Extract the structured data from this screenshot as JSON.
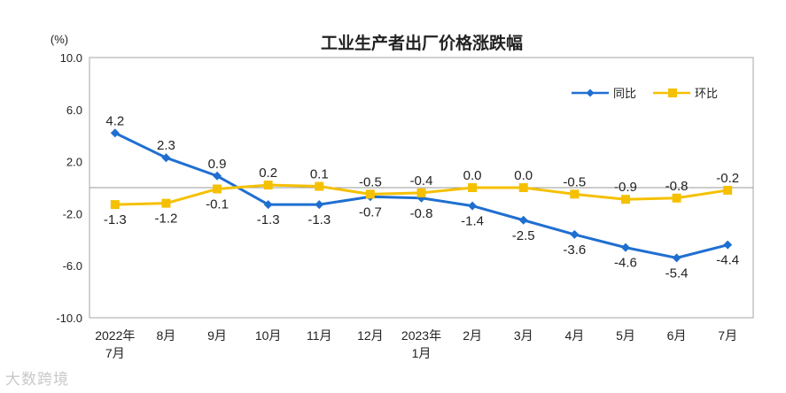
{
  "chart_data": {
    "type": "line",
    "title": "工业生产者出厂价格涨跌幅",
    "yunit": "(%)",
    "ylim": [
      -10.0,
      10.0
    ],
    "yticks": [
      "10.0",
      "6.0",
      "2.0",
      "-2.0",
      "-6.0",
      "-10.0"
    ],
    "ytick_values": [
      10,
      6,
      2,
      -2,
      -6,
      -10
    ],
    "categories": [
      [
        "2022年",
        "7月"
      ],
      [
        "8月"
      ],
      [
        "9月"
      ],
      [
        "10月"
      ],
      [
        "11月"
      ],
      [
        "12月"
      ],
      [
        "2023年",
        "1月"
      ],
      [
        "2月"
      ],
      [
        "3月"
      ],
      [
        "4月"
      ],
      [
        "5月"
      ],
      [
        "6月"
      ],
      [
        "7月"
      ]
    ],
    "series": [
      {
        "name": "同比",
        "color": "#1f6fd1",
        "marker": "diamond",
        "values": [
          4.2,
          2.3,
          0.9,
          -1.3,
          -1.3,
          -0.7,
          -0.8,
          -1.4,
          -2.5,
          -3.6,
          -4.6,
          -5.4,
          -4.4
        ],
        "labels": [
          "4.2",
          "2.3",
          "0.9",
          "-1.3",
          "-1.3",
          "-0.7",
          "-0.8",
          "-1.4",
          "-2.5",
          "-3.6",
          "-4.6",
          "-5.4",
          "-4.4"
        ]
      },
      {
        "name": "环比",
        "color": "#f5c000",
        "marker": "square",
        "values": [
          -1.3,
          -1.2,
          -0.1,
          0.2,
          0.1,
          -0.5,
          -0.4,
          0.0,
          0.0,
          -0.5,
          -0.9,
          -0.8,
          -0.2
        ],
        "labels": [
          "-1.3",
          "-1.2",
          "-0.1",
          "0.2",
          "0.1",
          "-0.5",
          "-0.4",
          "0.0",
          "0.0",
          "-0.5",
          "-0.9",
          "-0.8",
          "-0.2"
        ]
      }
    ],
    "legend": "top-right",
    "grid": false
  },
  "watermark": "大数跨境"
}
